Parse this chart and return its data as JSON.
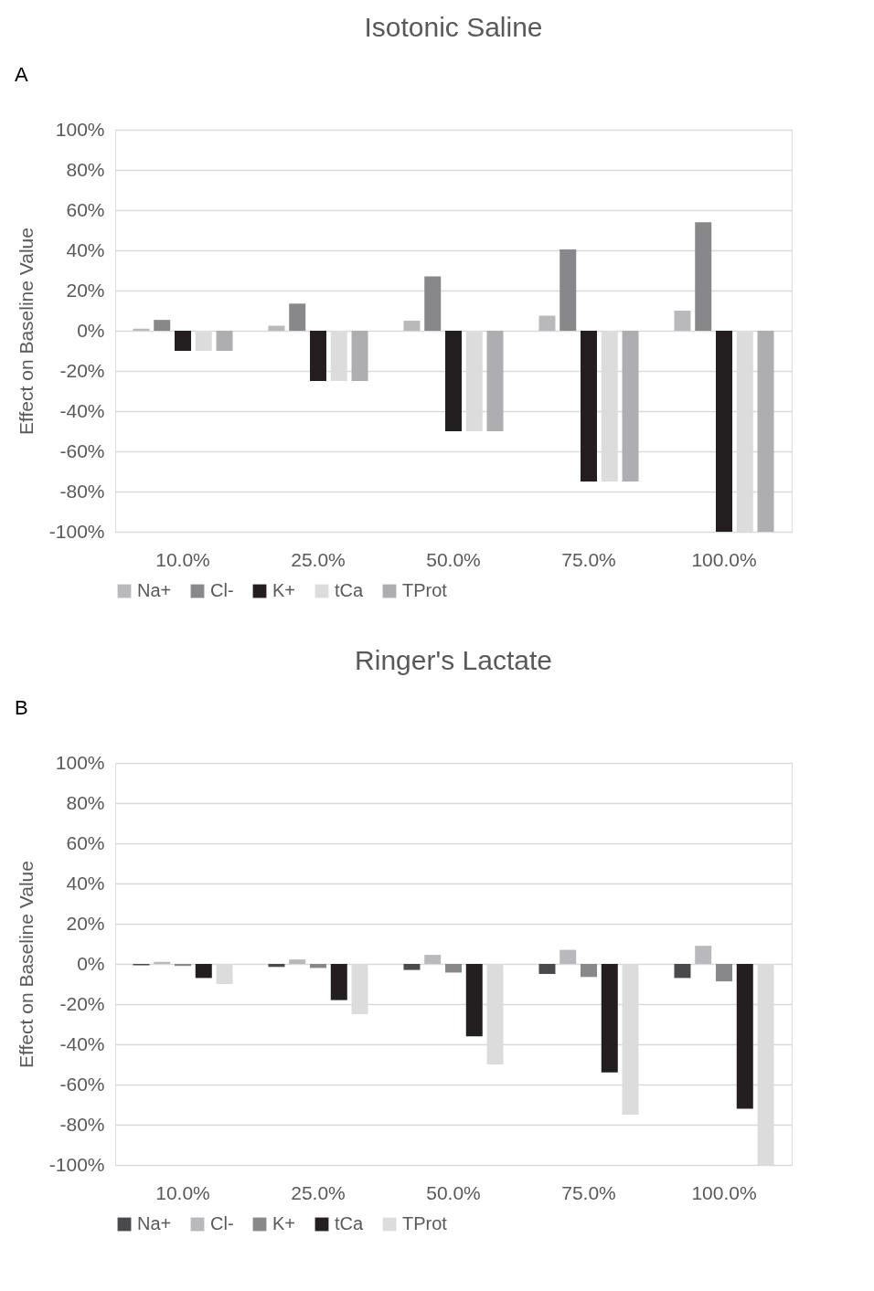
{
  "chart_data": [
    {
      "type": "bar",
      "title": "Isotonic Saline",
      "ylabel": "Effect on Baseline Value",
      "annotations": [
        "A"
      ],
      "categories": [
        "10.0%",
        "25.0%",
        "50.0%",
        "75.0%",
        "100.0%"
      ],
      "series": [
        {
          "name": "Na+",
          "color": "#b9b9bb",
          "values": [
            1,
            2.5,
            5,
            7.5,
            10
          ]
        },
        {
          "name": "Cl-",
          "color": "#88888b",
          "values": [
            5.4,
            13.5,
            27,
            40.5,
            54
          ]
        },
        {
          "name": "K+",
          "color": "#231f20",
          "values": [
            -10,
            -25,
            -50,
            -75,
            -100
          ]
        },
        {
          "name": "tCa",
          "color": "#dcdcdd",
          "values": [
            -10,
            -25,
            -50,
            -75,
            -100
          ]
        },
        {
          "name": "TProt",
          "color": "#aeaeb0",
          "values": [
            -10,
            -25,
            -50,
            -75,
            -100
          ]
        }
      ],
      "ylim": [
        -100,
        100
      ],
      "yticks": [
        {
          "value": -100,
          "label": "-100%"
        },
        {
          "value": -80,
          "label": "-80%"
        },
        {
          "value": -60,
          "label": "-60%"
        },
        {
          "value": -40,
          "label": "-40%"
        },
        {
          "value": -20,
          "label": "-20%"
        },
        {
          "value": 0,
          "label": "0%"
        },
        {
          "value": 20,
          "label": "20%"
        },
        {
          "value": 40,
          "label": "40%"
        },
        {
          "value": 60,
          "label": "60%"
        },
        {
          "value": 80,
          "label": "80%"
        },
        {
          "value": 100,
          "label": "100%"
        }
      ],
      "grid": "y",
      "legend": "bottom"
    },
    {
      "type": "bar",
      "title": "Ringer's Lactate",
      "ylabel": "Effect on Baseline Value",
      "annotations": [
        "B"
      ],
      "categories": [
        "10.0%",
        "25.0%",
        "50.0%",
        "75.0%",
        "100.0%"
      ],
      "series": [
        {
          "name": "Na+",
          "color": "#4a4a4c",
          "values": [
            -0.7,
            -1.5,
            -3,
            -5,
            -7
          ]
        },
        {
          "name": "Cl-",
          "color": "#b9b9bb",
          "values": [
            1,
            2.2,
            4.5,
            7,
            9
          ]
        },
        {
          "name": "K+",
          "color": "#88888b",
          "values": [
            -1,
            -2,
            -4.3,
            -6.5,
            -8.7
          ]
        },
        {
          "name": "tCa",
          "color": "#231f20",
          "values": [
            -7,
            -18,
            -36,
            -54,
            -72
          ]
        },
        {
          "name": "TProt",
          "color": "#dcdcdd",
          "values": [
            -10,
            -25,
            -50,
            -75,
            -100
          ]
        }
      ],
      "ylim": [
        -100,
        100
      ],
      "yticks": [
        {
          "value": -100,
          "label": "-100%"
        },
        {
          "value": -80,
          "label": "-80%"
        },
        {
          "value": -60,
          "label": "-60%"
        },
        {
          "value": -40,
          "label": "-40%"
        },
        {
          "value": -20,
          "label": "-20%"
        },
        {
          "value": 0,
          "label": "0%"
        },
        {
          "value": 20,
          "label": "20%"
        },
        {
          "value": 40,
          "label": "40%"
        },
        {
          "value": 60,
          "label": "60%"
        },
        {
          "value": 80,
          "label": "80%"
        },
        {
          "value": 100,
          "label": "100%"
        }
      ],
      "grid": "y",
      "legend": "bottom"
    }
  ]
}
